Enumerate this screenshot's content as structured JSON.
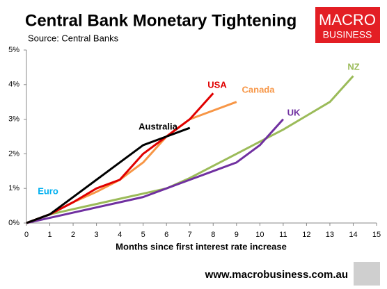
{
  "chart_data": {
    "type": "line",
    "title": "Central Bank Monetary Tightening",
    "subtitle": "Source: Central Banks",
    "x_label": "Months since first interest rate increase",
    "x": [
      0,
      1,
      2,
      3,
      4,
      5,
      6,
      7,
      8,
      9,
      10,
      11,
      12,
      13,
      14
    ],
    "xlim": [
      0,
      15
    ],
    "xticks": [
      0,
      1,
      2,
      3,
      4,
      5,
      6,
      7,
      8,
      9,
      10,
      11,
      12,
      13,
      14,
      15
    ],
    "ylim": [
      0,
      5
    ],
    "yticks": [
      {
        "value": 0,
        "label": "0%"
      },
      {
        "value": 1,
        "label": "1%"
      },
      {
        "value": 2,
        "label": "2%"
      },
      {
        "value": 3,
        "label": "3%"
      },
      {
        "value": 4,
        "label": "4%"
      },
      {
        "value": 5,
        "label": "5%"
      }
    ],
    "grid": false,
    "series": [
      {
        "name": "NZ",
        "color": "#9bbb59",
        "values": [
          0,
          0.25,
          0.4,
          0.55,
          0.7,
          0.85,
          1.0,
          1.3,
          1.65,
          2.0,
          2.35,
          2.7,
          3.1,
          3.5,
          4.25
        ]
      },
      {
        "name": "UK",
        "color": "#7030a0",
        "values": [
          0,
          0.15,
          0.3,
          0.45,
          0.6,
          0.75,
          1.0,
          1.25,
          1.5,
          1.75,
          2.25,
          3.0,
          null,
          null,
          null
        ]
      },
      {
        "name": "Euro",
        "color": "#00b0f0",
        "values": [
          0,
          0.25,
          null,
          null,
          null,
          null,
          null,
          null,
          null,
          null,
          null,
          null,
          null,
          null,
          null
        ]
      },
      {
        "name": "Canada",
        "color": "#f79646",
        "values": [
          0,
          0.25,
          0.6,
          0.9,
          1.25,
          1.75,
          2.5,
          3.0,
          3.25,
          3.5,
          null,
          null,
          null,
          null,
          null
        ]
      },
      {
        "name": "USA",
        "color": "#e00000",
        "values": [
          0,
          0.25,
          0.6,
          1.0,
          1.25,
          2.0,
          2.5,
          3.0,
          3.75,
          null,
          null,
          null,
          null,
          null,
          null
        ]
      },
      {
        "name": "Australia",
        "color": "#000000",
        "values": [
          0,
          0.25,
          0.75,
          1.25,
          1.75,
          2.25,
          2.5,
          2.75,
          null,
          null,
          null,
          null,
          null,
          null,
          null
        ]
      }
    ]
  },
  "logo": {
    "line1": "MACRO",
    "line2": "BUSINESS"
  },
  "footer": "www.macrobusiness.com.au"
}
